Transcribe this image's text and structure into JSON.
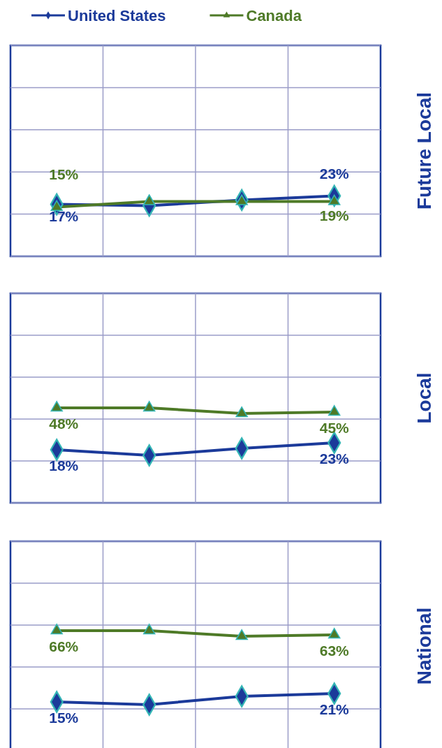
{
  "chart_data": [
    {
      "type": "line",
      "ylabel": "Future Local",
      "categories": [
        null,
        null,
        null,
        null
      ],
      "ylim": [
        -20,
        130
      ],
      "yticks": [
        {
          "value": -20,
          "label": null
        },
        {
          "value": 10,
          "label": null
        },
        {
          "value": 40,
          "label": null
        },
        {
          "value": 70,
          "label": null
        },
        {
          "value": 100,
          "label": null
        },
        {
          "value": 130,
          "label": null
        }
      ],
      "grid": true,
      "legend": "top",
      "series": [
        {
          "name": "United States",
          "color": "#1b3a9a",
          "marker": "diamond",
          "values": [
            17,
            16,
            20,
            23
          ],
          "value_labels": [
            "17%",
            null,
            null,
            "23%"
          ]
        },
        {
          "name": "Canada",
          "color": "#4e7a27",
          "marker": "triangle",
          "values": [
            15,
            19,
            19,
            19
          ],
          "value_labels": [
            "15%",
            null,
            null,
            "19%"
          ]
        }
      ]
    },
    {
      "type": "line",
      "ylabel": "Local",
      "categories": [
        null,
        null,
        null,
        null
      ],
      "ylim": [
        -20,
        130
      ],
      "yticks": [
        {
          "value": -20,
          "label": null
        },
        {
          "value": 10,
          "label": null
        },
        {
          "value": 40,
          "label": null
        },
        {
          "value": 70,
          "label": null
        },
        {
          "value": 100,
          "label": null
        },
        {
          "value": 130,
          "label": null
        }
      ],
      "grid": true,
      "series": [
        {
          "color": "#1b3a9a",
          "marker": "diamond",
          "values": [
            18,
            14,
            19,
            23
          ],
          "value_labels": [
            "18%",
            null,
            null,
            "23%"
          ]
        },
        {
          "color": "#4e7a27",
          "marker": "triangle",
          "values": [
            48,
            48,
            44,
            45
          ],
          "value_labels": [
            "48%",
            null,
            null,
            "45%"
          ]
        }
      ]
    },
    {
      "type": "line",
      "ylabel": "National",
      "categories": [
        null,
        null,
        null,
        null
      ],
      "ylim": [
        -20,
        130
      ],
      "yticks": [
        {
          "value": -20,
          "label": null
        },
        {
          "value": 10,
          "label": null
        },
        {
          "value": 40,
          "label": null
        },
        {
          "value": 70,
          "label": null
        },
        {
          "value": 100,
          "label": null
        },
        {
          "value": 130,
          "label": null
        }
      ],
      "grid": true,
      "series": [
        {
          "color": "#1b3a9a",
          "marker": "diamond",
          "values": [
            15,
            13,
            19,
            21
          ],
          "value_labels": [
            "15%",
            null,
            null,
            "21%"
          ]
        },
        {
          "color": "#4e7a27",
          "marker": "triangle",
          "values": [
            66,
            66,
            62,
            63
          ],
          "value_labels": [
            "66%",
            null,
            null,
            "63%"
          ]
        }
      ]
    }
  ]
}
